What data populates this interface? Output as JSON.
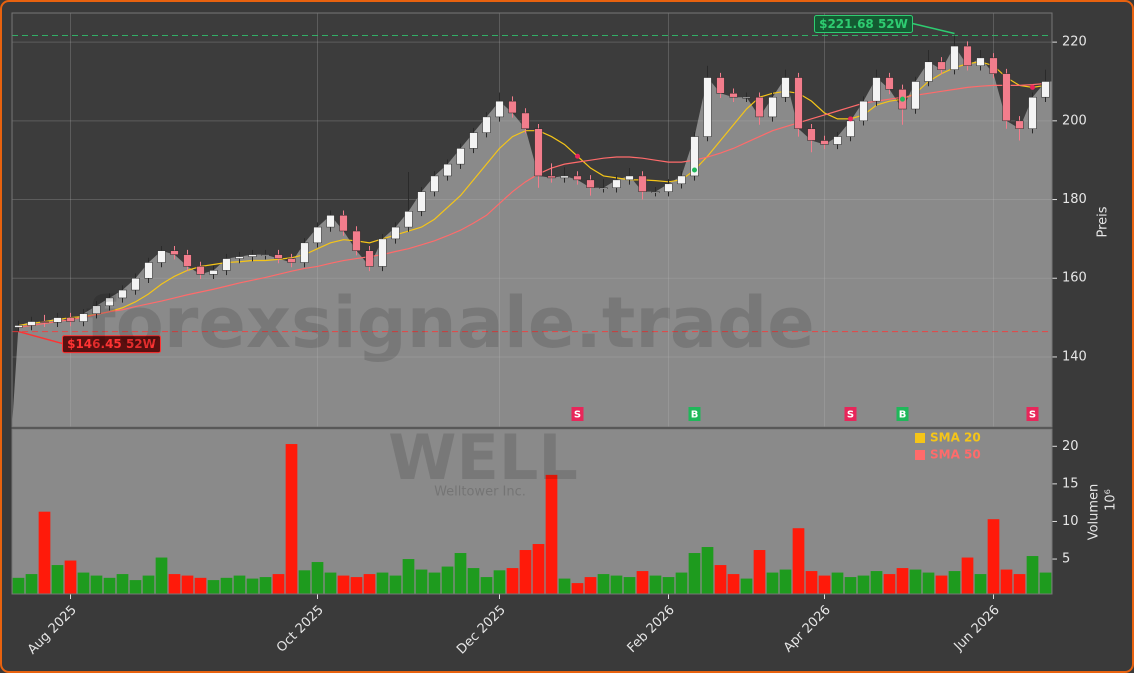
{
  "chart_data": {
    "type": "candlestick",
    "categories": [
      null,
      null,
      null,
      null,
      "Aug 2025",
      null,
      null,
      null,
      null,
      null,
      null,
      null,
      null,
      null,
      null,
      null,
      null,
      null,
      null,
      null,
      null,
      null,
      null,
      "Oct 2025",
      null,
      null,
      null,
      null,
      null,
      null,
      null,
      null,
      null,
      null,
      null,
      null,
      null,
      "Dec 2025",
      null,
      null,
      null,
      null,
      null,
      null,
      null,
      null,
      null,
      null,
      null,
      null,
      "Feb 2026",
      null,
      null,
      null,
      null,
      null,
      null,
      null,
      null,
      null,
      null,
      null,
      "Apr 2026",
      null,
      null,
      null,
      null,
      null,
      null,
      null,
      null,
      null,
      null,
      null,
      null,
      "Jun 2026",
      null,
      null,
      null,
      null
    ],
    "open": [
      147.5,
      148,
      149,
      148.8,
      150,
      149,
      151,
      153,
      155,
      157,
      160,
      164,
      167,
      166,
      163,
      161,
      162,
      165,
      165.5,
      166,
      166,
      165,
      164,
      169,
      173,
      176,
      172,
      167,
      163,
      170,
      173,
      177,
      182,
      186,
      189,
      193,
      197,
      201,
      205,
      202,
      198,
      186,
      185.5,
      186,
      185,
      183,
      183,
      185,
      186,
      182,
      182,
      184,
      186,
      196,
      211,
      207,
      206,
      206,
      201,
      206,
      211,
      198,
      195,
      194,
      196,
      200,
      205,
      211,
      208,
      203,
      210,
      215,
      213,
      219,
      214,
      216,
      212,
      200,
      198,
      206
    ],
    "high": [
      149.2,
      150.2,
      150.7,
      151.2,
      151.2,
      152.2,
      154.2,
      156.2,
      158.2,
      161.2,
      165.2,
      168.2,
      168.2,
      167.2,
      164.2,
      163.2,
      166.2,
      166.7,
      167.2,
      167.2,
      167.2,
      166.2,
      170.2,
      174.2,
      177.2,
      177.2,
      173.2,
      168.2,
      171.2,
      174.2,
      187,
      183.2,
      187.2,
      190.2,
      194.2,
      198.2,
      202.2,
      207.2,
      206.2,
      203.2,
      199.2,
      189.2,
      188.2,
      187.2,
      186.2,
      185.2,
      186.2,
      188,
      187.2,
      183.2,
      185.2,
      187.2,
      197.2,
      214,
      212.2,
      208.2,
      207.2,
      207.2,
      207.2,
      213,
      212.2,
      199.2,
      196.2,
      197.2,
      201.2,
      206.2,
      213,
      212.2,
      209.2,
      211.2,
      218,
      216.2,
      221.68,
      220.2,
      218,
      217.2,
      213.2,
      201.2,
      207.2,
      213
    ],
    "low": [
      146.45,
      146.8,
      147.6,
      147.6,
      147.8,
      147.8,
      149.8,
      151.8,
      153.8,
      155.8,
      158.8,
      162.8,
      164.8,
      161.8,
      159.8,
      159.8,
      160.8,
      163.8,
      164.3,
      164.8,
      163.8,
      162.8,
      162.8,
      167.8,
      171.8,
      170.8,
      165.8,
      161.8,
      161.8,
      168.8,
      171.8,
      175.8,
      180.8,
      184.8,
      187.8,
      191.8,
      195.8,
      199.8,
      200.8,
      196.8,
      183,
      184.3,
      184.3,
      183.8,
      181,
      181.8,
      181.8,
      183.8,
      180,
      180.8,
      180.8,
      182.8,
      184.8,
      194.8,
      205.8,
      204.8,
      204.8,
      199,
      199.8,
      204.8,
      196,
      192,
      192.8,
      192.8,
      194.8,
      198.8,
      203.8,
      206.8,
      199,
      201.8,
      208.8,
      211.8,
      211.8,
      212.8,
      212.8,
      210.8,
      198,
      195,
      196.8,
      204.8
    ],
    "close": [
      148,
      149,
      148.8,
      150,
      149,
      151,
      153,
      155,
      157,
      160,
      164,
      167,
      166,
      163,
      161,
      162,
      165,
      165.5,
      166,
      166,
      165,
      164,
      169,
      173,
      176,
      172,
      167,
      163,
      170,
      173,
      177,
      182,
      186,
      189,
      193,
      197,
      201,
      205,
      202,
      198,
      186,
      185.5,
      186,
      185,
      183,
      183,
      185,
      186,
      182,
      182,
      184,
      186,
      196,
      211,
      207,
      206,
      206,
      201,
      206,
      211,
      198,
      195,
      194,
      196,
      200,
      205,
      211,
      208,
      203,
      210,
      215,
      213,
      219,
      214,
      216,
      212,
      200,
      198,
      206,
      210
    ],
    "volume": [
      2.5,
      3,
      11.3,
      4.2,
      4.8,
      3.2,
      2.8,
      2.5,
      3,
      2.2,
      2.8,
      5.2,
      3.0,
      2.8,
      2.5,
      2.2,
      2.5,
      2.8,
      2.4,
      2.6,
      3.0,
      20.3,
      3.5,
      4.6,
      3.2,
      2.8,
      2.6,
      3.0,
      3.2,
      2.8,
      5.0,
      3.6,
      3.2,
      4.0,
      5.8,
      3.8,
      2.6,
      3.5,
      3.8,
      6.2,
      7.0,
      16.2,
      2.4,
      1.8,
      2.6,
      3.0,
      2.8,
      2.6,
      3.4,
      2.8,
      2.6,
      3.2,
      5.8,
      6.6,
      4.2,
      3.0,
      2.4,
      6.2,
      3.2,
      3.6,
      9.1,
      3.4,
      2.8,
      3.2,
      2.6,
      2.8,
      3.4,
      3.0,
      3.8,
      3.6,
      3.2,
      2.8,
      3.4,
      5.2,
      3.0,
      10.3,
      3.6,
      3.0,
      5.4,
      3.2
    ],
    "up_color": "#f4f4f4",
    "down_color": "#f27d8c",
    "volume_up_color": "#1e9b1e",
    "volume_down_color": "#ff1a0a",
    "area_color": "#8a8a8a",
    "series": [
      {
        "name": "SMA 20",
        "color": "#f5c518",
        "values": [
          148,
          148.5,
          149,
          149.5,
          150,
          150.3,
          150.8,
          151.5,
          152.5,
          154,
          156,
          158.5,
          160.5,
          162,
          163,
          163.5,
          164,
          164.2,
          164.5,
          164.5,
          164.8,
          165.2,
          166,
          167.5,
          169,
          169.8,
          169.5,
          169,
          170,
          171,
          172,
          173,
          175,
          178,
          181,
          185,
          189,
          193,
          196,
          197.5,
          197.5,
          196,
          194,
          191,
          188,
          186,
          185.5,
          185,
          185,
          184.8,
          184.5,
          185,
          187.5,
          191,
          195,
          199,
          203,
          206,
          207,
          207.5,
          207,
          205,
          202,
          200.5,
          200.5,
          201.5,
          204,
          205,
          205.5,
          207,
          210,
          212,
          213.5,
          214.5,
          215,
          214,
          211,
          209,
          208.5,
          209
        ]
      },
      {
        "name": "SMA 50",
        "color": "#ff6b6b",
        "values": [
          147.5,
          148,
          148.5,
          149,
          149.5,
          150,
          150.8,
          151.5,
          152,
          152.8,
          153.5,
          154.2,
          155,
          155.8,
          156.5,
          157.2,
          158,
          158.8,
          159.5,
          160.2,
          161,
          161.8,
          162.5,
          163,
          163.8,
          164.5,
          165,
          165.5,
          166,
          166.8,
          167.5,
          168.5,
          169.5,
          170.8,
          172.2,
          174,
          176,
          179,
          182,
          184.5,
          186.5,
          188,
          189,
          189.5,
          190,
          190.5,
          190.8,
          190.8,
          190.5,
          190,
          189.5,
          189.5,
          190,
          190.8,
          191.8,
          193,
          194.5,
          196,
          197.5,
          198.5,
          199.5,
          200.5,
          201.5,
          202.5,
          203.5,
          204.5,
          205,
          205.5,
          206,
          206.5,
          207,
          207.5,
          208,
          208.5,
          208.8,
          209,
          209,
          209,
          209.2,
          209.5
        ]
      }
    ],
    "signals": [
      null,
      null,
      null,
      null,
      null,
      null,
      null,
      null,
      null,
      null,
      null,
      null,
      null,
      null,
      null,
      null,
      null,
      null,
      null,
      null,
      null,
      null,
      null,
      null,
      null,
      null,
      null,
      null,
      null,
      null,
      null,
      null,
      null,
      null,
      null,
      null,
      null,
      null,
      null,
      null,
      null,
      null,
      null,
      "S",
      null,
      null,
      null,
      null,
      null,
      null,
      null,
      null,
      "B",
      null,
      null,
      null,
      null,
      null,
      null,
      null,
      null,
      null,
      null,
      null,
      "S",
      null,
      null,
      null,
      "B",
      null,
      null,
      null,
      null,
      null,
      null,
      null,
      null,
      null,
      "S",
      null
    ],
    "signal_colors": {
      "S": "#e8265a",
      "B": "#1fb85a"
    },
    "annotations": [
      {
        "value": 221.68,
        "label": "$221.68 52W",
        "color": "#2ecc71"
      },
      {
        "value": 146.45,
        "label": "$146.45 52W",
        "color": "#ff3333"
      }
    ],
    "ylim": [
      122.2,
      227.4
    ],
    "yticks": [
      140,
      160,
      180,
      200,
      220
    ],
    "ylabel": "Preis",
    "volume_ylim": [
      0.35,
      22.3
    ],
    "volume_yticks": [
      5,
      10,
      15,
      20
    ],
    "volume_ylabel": "Volumen",
    "volume_unit_label": "10⁶",
    "grid": true,
    "watermark": "forexsignale.trade",
    "ticker": "WELL",
    "company": "Welltower Inc."
  }
}
